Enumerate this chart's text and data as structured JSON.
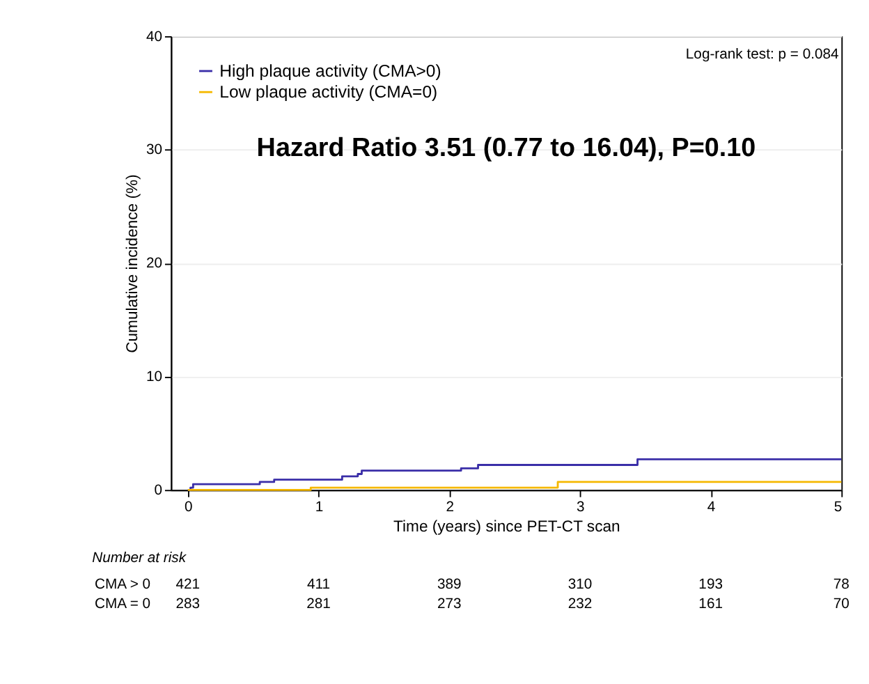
{
  "chart_data": {
    "type": "step",
    "xlabel": "Time (years) since PET-CT scan",
    "ylabel": "Cumulative incidence (%)",
    "xlim": [
      -0.13,
      5
    ],
    "xticks": [
      0,
      1,
      2,
      3,
      4,
      5
    ],
    "ylim": [
      0,
      40
    ],
    "yticks": [
      0,
      10,
      20,
      30,
      40
    ],
    "grid": "y",
    "legend": "top left",
    "line_style": "solid",
    "series": [
      {
        "name": "High plaque activity (CMA>0)",
        "color": "#3a2ea8",
        "x": [
          0,
          0.02,
          0.04,
          0.55,
          0.66,
          1.18,
          1.3,
          1.33,
          2.09,
          2.22,
          3.44,
          5
        ],
        "values": [
          0,
          0.2,
          0.5,
          0.7,
          0.9,
          1.2,
          1.4,
          1.7,
          1.9,
          2.2,
          2.7,
          2.7
        ]
      },
      {
        "name": "Low plaque activity (CMA=0)",
        "color": "#f5b800",
        "x": [
          0,
          0.94,
          2.83,
          5
        ],
        "values": [
          0,
          0.2,
          0.7,
          0.7
        ]
      }
    ],
    "annotations": [
      "Log-rank test: p = 0.084",
      "Hazard Ratio 3.51 (0.77 to 16.04), P=0.10",
      "Number at risk",
      "CMA > 0",
      "421",
      "411",
      "389",
      "310",
      "193",
      "78",
      "CMA = 0",
      "283",
      "281",
      "273",
      "232",
      "161",
      "70"
    ]
  }
}
